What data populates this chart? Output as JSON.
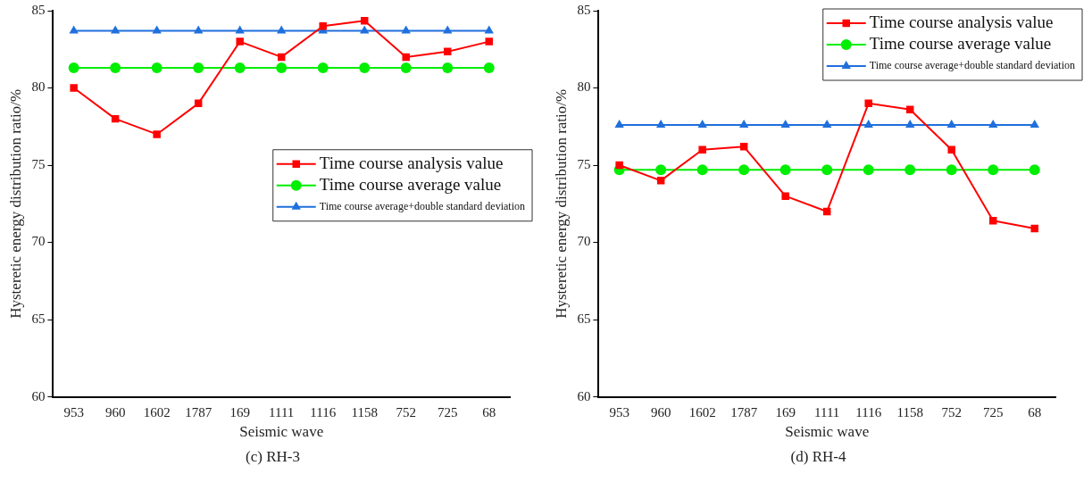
{
  "chart_data": [
    {
      "type": "line",
      "xlabel": "Seismic wave",
      "ylabel": "Hysteretic energy distribution ratio/%",
      "categories": [
        "953",
        "960",
        "1602",
        "1787",
        "169",
        "1111",
        "1116",
        "1158",
        "752",
        "725",
        "68"
      ],
      "ylim": [
        60,
        85
      ],
      "yticks": [
        60,
        65,
        70,
        75,
        80,
        85
      ],
      "legend": "right",
      "line_style": "solid",
      "annotations": [
        "(c) RH-3"
      ],
      "series": [
        {
          "name": "Time course analysis value",
          "color": "#ff0000",
          "marker": "square",
          "values": [
            80,
            78,
            77,
            79,
            83,
            82,
            84,
            84.35,
            82,
            82.35,
            83
          ]
        },
        {
          "name": "Time course average value",
          "color": "#00ee00",
          "marker": "circle",
          "values": [
            81.3,
            81.3,
            81.3,
            81.3,
            81.3,
            81.3,
            81.3,
            81.3,
            81.3,
            81.3,
            81.3
          ]
        },
        {
          "name": "Time course average+double standard deviation",
          "color": "#1f6fdd",
          "marker": "triangle",
          "values": [
            83.7,
            83.7,
            83.7,
            83.7,
            83.7,
            83.7,
            83.7,
            83.7,
            83.7,
            83.7,
            83.7
          ]
        }
      ]
    },
    {
      "type": "line",
      "xlabel": "Seismic wave",
      "ylabel": "Hysteretic energy distribution ratio/%",
      "categories": [
        "953",
        "960",
        "1602",
        "1787",
        "169",
        "1111",
        "1116",
        "1158",
        "752",
        "725",
        "68"
      ],
      "ylim": [
        60,
        85
      ],
      "yticks": [
        60,
        65,
        70,
        75,
        80,
        85
      ],
      "legend": "top right",
      "line_style": "solid",
      "annotations": [
        "(d) RH-4"
      ],
      "series": [
        {
          "name": "Time course analysis value",
          "color": "#ff0000",
          "marker": "square",
          "values": [
            75,
            74,
            76,
            76.2,
            73,
            72,
            79,
            78.6,
            76,
            71.4,
            70.9
          ]
        },
        {
          "name": "Time course average value",
          "color": "#00ee00",
          "marker": "circle",
          "values": [
            74.7,
            74.7,
            74.7,
            74.7,
            74.7,
            74.7,
            74.7,
            74.7,
            74.7,
            74.7,
            74.7
          ]
        },
        {
          "name": "Time course average+double standard deviation",
          "color": "#1f6fdd",
          "marker": "triangle",
          "values": [
            77.6,
            77.6,
            77.6,
            77.6,
            77.6,
            77.6,
            77.6,
            77.6,
            77.6,
            77.6,
            77.6
          ]
        }
      ]
    }
  ]
}
